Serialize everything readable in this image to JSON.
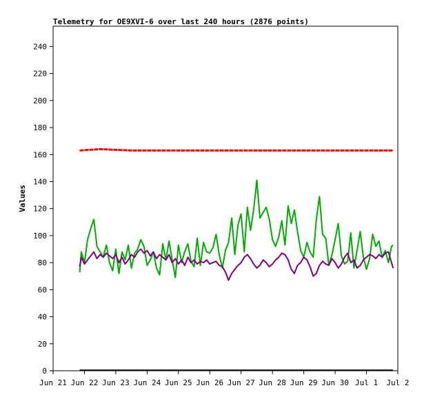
{
  "chart_data": {
    "type": "line",
    "title": "Telemetry for OE9XVI-6 over last 240 hours (2876 points)",
    "xlabel": "",
    "ylabel": "Values",
    "x_ticks": [
      "Jun 21",
      "Jun 22",
      "Jun 23",
      "Jun 24",
      "Jun 25",
      "Jun 26",
      "Jun 27",
      "Jun 28",
      "Jun 29",
      "Jun 30",
      "Jul 1",
      "Jul 2"
    ],
    "y_ticks": [
      0,
      20,
      40,
      60,
      80,
      100,
      120,
      140,
      160,
      180,
      200,
      220,
      240
    ],
    "ylim": [
      0,
      255
    ],
    "xlim_days": [
      0,
      11
    ],
    "grid": false,
    "legend": "none",
    "series": [
      {
        "color": "#ff0000",
        "style": "dense-points",
        "x_days": [
          0.85,
          1.5,
          2.5,
          3.5,
          4.5,
          5.5,
          6.5,
          7.5,
          8.5,
          9.5,
          10.5,
          10.85
        ],
        "values": [
          163,
          164,
          163,
          163,
          163,
          163,
          163,
          163,
          163,
          163,
          163,
          163
        ]
      },
      {
        "color": "#00aa00",
        "x_days": [
          0.85,
          0.9,
          1.0,
          1.1,
          1.2,
          1.3,
          1.4,
          1.5,
          1.6,
          1.7,
          1.8,
          1.9,
          2.0,
          2.1,
          2.2,
          2.3,
          2.4,
          2.5,
          2.6,
          2.7,
          2.8,
          2.9,
          3.0,
          3.1,
          3.2,
          3.3,
          3.4,
          3.5,
          3.6,
          3.7,
          3.8,
          3.9,
          4.0,
          4.1,
          4.2,
          4.3,
          4.4,
          4.5,
          4.6,
          4.7,
          4.8,
          4.9,
          5.0,
          5.1,
          5.2,
          5.3,
          5.4,
          5.5,
          5.6,
          5.7,
          5.8,
          5.9,
          6.0,
          6.1,
          6.2,
          6.3,
          6.4,
          6.5,
          6.6,
          6.7,
          6.8,
          6.9,
          7.0,
          7.1,
          7.2,
          7.3,
          7.4,
          7.5,
          7.6,
          7.7,
          7.8,
          7.9,
          8.0,
          8.1,
          8.2,
          8.3,
          8.4,
          8.5,
          8.6,
          8.7,
          8.8,
          8.9,
          9.0,
          9.1,
          9.2,
          9.3,
          9.4,
          9.5,
          9.6,
          9.7,
          9.8,
          9.9,
          10.0,
          10.1,
          10.2,
          10.3,
          10.4,
          10.5,
          10.6,
          10.7,
          10.8,
          10.85
        ],
        "values": [
          73,
          88,
          80,
          97,
          105,
          112,
          92,
          88,
          84,
          93,
          80,
          74,
          90,
          72,
          88,
          82,
          93,
          76,
          87,
          90,
          97,
          92,
          78,
          82,
          88,
          76,
          71,
          94,
          82,
          96,
          82,
          69,
          93,
          80,
          88,
          94,
          81,
          77,
          98,
          78,
          95,
          88,
          87,
          91,
          101,
          86,
          76,
          89,
          95,
          113,
          86,
          108,
          116,
          88,
          121,
          104,
          119,
          141,
          113,
          117,
          121,
          112,
          97,
          92,
          99,
          111,
          93,
          122,
          109,
          119,
          103,
          89,
          84,
          95,
          88,
          84,
          112,
          129,
          101,
          98,
          78,
          86,
          97,
          109,
          85,
          79,
          81,
          102,
          76,
          89,
          103,
          84,
          75,
          83,
          101,
          92,
          96,
          84,
          89,
          80,
          92,
          93
        ]
      },
      {
        "color": "#800080",
        "x_days": [
          0.85,
          0.9,
          1.0,
          1.1,
          1.2,
          1.3,
          1.4,
          1.5,
          1.6,
          1.7,
          1.8,
          1.9,
          2.0,
          2.1,
          2.2,
          2.3,
          2.4,
          2.5,
          2.6,
          2.7,
          2.8,
          2.9,
          3.0,
          3.1,
          3.2,
          3.3,
          3.4,
          3.5,
          3.6,
          3.7,
          3.8,
          3.9,
          4.0,
          4.1,
          4.2,
          4.3,
          4.4,
          4.5,
          4.6,
          4.7,
          4.8,
          4.9,
          5.0,
          5.1,
          5.2,
          5.3,
          5.4,
          5.5,
          5.6,
          5.7,
          5.8,
          5.9,
          6.0,
          6.1,
          6.2,
          6.3,
          6.4,
          6.5,
          6.6,
          6.7,
          6.8,
          6.9,
          7.0,
          7.1,
          7.2,
          7.3,
          7.4,
          7.5,
          7.6,
          7.7,
          7.8,
          7.9,
          8.0,
          8.1,
          8.2,
          8.3,
          8.4,
          8.5,
          8.6,
          8.7,
          8.8,
          8.9,
          9.0,
          9.1,
          9.2,
          9.3,
          9.4,
          9.5,
          9.6,
          9.7,
          9.8,
          9.9,
          10.0,
          10.1,
          10.2,
          10.3,
          10.4,
          10.5,
          10.6,
          10.7,
          10.8,
          10.85
        ],
        "values": [
          77,
          84,
          79,
          82,
          85,
          88,
          83,
          86,
          84,
          87,
          85,
          83,
          86,
          80,
          84,
          79,
          82,
          86,
          84,
          88,
          90,
          87,
          89,
          85,
          88,
          83,
          86,
          84,
          82,
          86,
          80,
          83,
          79,
          82,
          78,
          84,
          80,
          82,
          79,
          81,
          80,
          82,
          79,
          80,
          81,
          78,
          77,
          73,
          67,
          72,
          75,
          78,
          80,
          84,
          86,
          83,
          79,
          76,
          78,
          82,
          80,
          77,
          79,
          82,
          84,
          87,
          86,
          82,
          75,
          72,
          78,
          80,
          84,
          82,
          77,
          70,
          72,
          78,
          81,
          79,
          78,
          83,
          80,
          76,
          79,
          84,
          87,
          80,
          82,
          76,
          78,
          82,
          84,
          86,
          85,
          83,
          86,
          84,
          87,
          88,
          80,
          76
        ]
      },
      {
        "color": "#000000",
        "x_days": [
          0.85,
          10.85
        ],
        "values": [
          0.4,
          0.4
        ]
      }
    ]
  }
}
